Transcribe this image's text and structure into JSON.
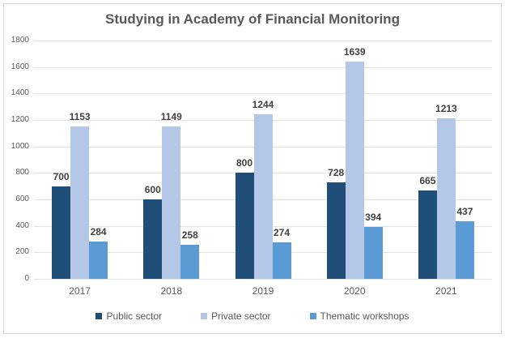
{
  "chart_data": {
    "type": "bar",
    "title": "Studying in Academy of Financial Monitoring",
    "xlabel": "",
    "ylabel": "",
    "ylim": [
      0,
      1800
    ],
    "yticks": [
      0,
      200,
      400,
      600,
      800,
      1000,
      1200,
      1400,
      1600,
      1800
    ],
    "grid": true,
    "legend_position": "bottom",
    "categories": [
      "2017",
      "2018",
      "2019",
      "2020",
      "2021"
    ],
    "series": [
      {
        "name": "Public sector",
        "color": "#1f4e79",
        "values": [
          700,
          600,
          800,
          728,
          665
        ]
      },
      {
        "name": "Private sector",
        "color": "#b4c7e7",
        "values": [
          1153,
          1149,
          1244,
          1639,
          1213
        ]
      },
      {
        "name": "Thematic workshops",
        "color": "#5b9bd5",
        "values": [
          284,
          258,
          274,
          394,
          437
        ]
      }
    ]
  }
}
